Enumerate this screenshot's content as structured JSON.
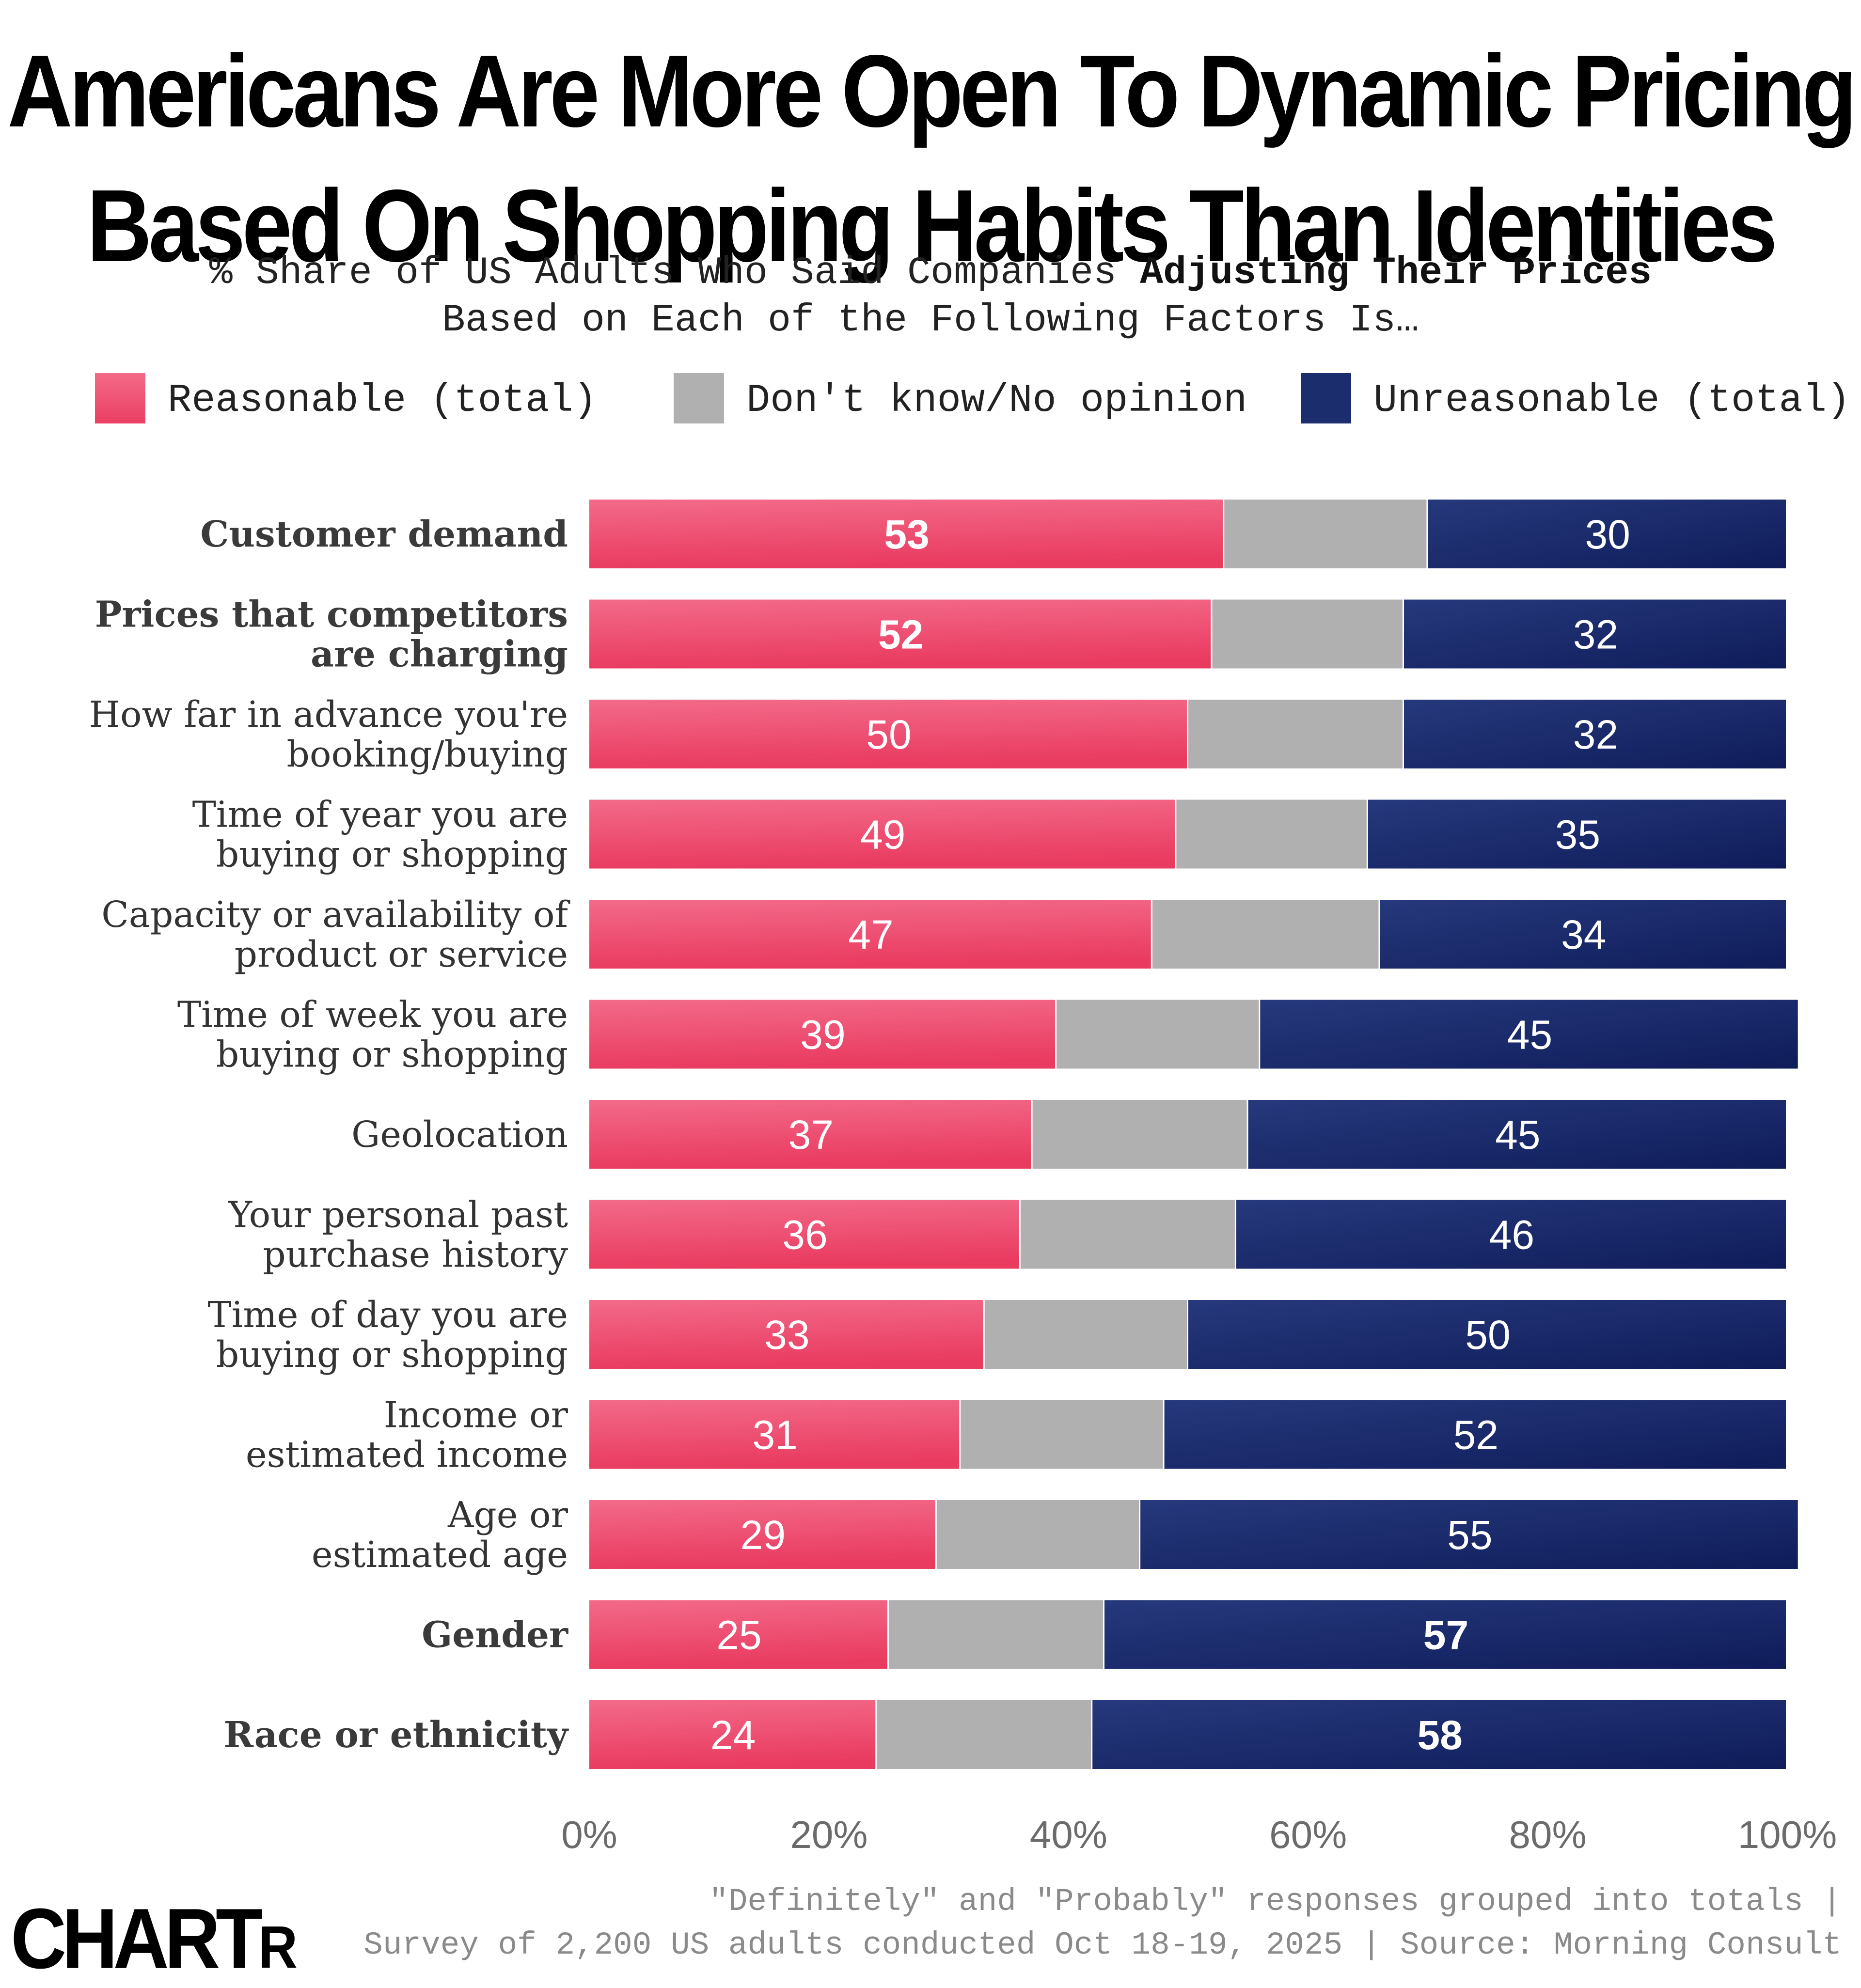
{
  "title_lines": [
    "Americans Are More Open To Dynamic Pricing",
    "Based On Shopping Habits Than Identities"
  ],
  "subtitle": {
    "line1_part1": "% Share of US Adults Who Said Companies ",
    "line1_bold": "Adjusting Their Prices",
    "line2": "Based on Each of the Following Factors Is…"
  },
  "legend": [
    {
      "label": "Reasonable (total)",
      "color": "#ee4a6b"
    },
    {
      "label": "Don't know/No opinion",
      "color": "#b0b0b0"
    },
    {
      "label": "Unreasonable (total)",
      "color": "#1c2d6e"
    }
  ],
  "chart_data": {
    "type": "bar",
    "orientation": "horizontal",
    "stacked": true,
    "categories": [
      "Customer demand",
      "Prices that competitors are charging",
      "How far in advance you're booking/buying",
      "Time of year you are buying or shopping",
      "Capacity or availability of product or service",
      "Time of week you are buying or shopping",
      "Geolocation",
      "Your personal past purchase history",
      "Time of day you are buying or shopping",
      "Income or estimated income",
      "Age or estimated age",
      "Gender",
      "Race or ethnicity"
    ],
    "category_label_lines": [
      [
        "Customer demand"
      ],
      [
        "Prices that competitors",
        "are charging"
      ],
      [
        "How far in advance you're",
        "booking/buying"
      ],
      [
        "Time of year you are",
        "buying or shopping"
      ],
      [
        "Capacity or availability of",
        "product or service"
      ],
      [
        "Time of week you are",
        "buying or shopping"
      ],
      [
        "Geolocation"
      ],
      [
        "Your personal past",
        "purchase history"
      ],
      [
        "Time of day you are",
        "buying or shopping"
      ],
      [
        "Income or",
        "estimated income"
      ],
      [
        "Age or",
        "estimated age"
      ],
      [
        "Gender"
      ],
      [
        "Race or ethnicity"
      ]
    ],
    "bold_categories": [
      0,
      1,
      11,
      12
    ],
    "bold_reasonable_labels": [
      0,
      1
    ],
    "bold_unreasonable_labels": [
      11,
      12
    ],
    "series": [
      {
        "name": "Reasonable (total)",
        "color": "#ee4a6b",
        "values": [
          53,
          52,
          50,
          49,
          47,
          39,
          37,
          36,
          33,
          31,
          29,
          25,
          24
        ],
        "labeled": true
      },
      {
        "name": "Don't know/No opinion",
        "color": "#b0b0b0",
        "values": [
          17,
          16,
          18,
          16,
          19,
          17,
          18,
          18,
          17,
          17,
          17,
          18,
          18
        ],
        "labeled": false
      },
      {
        "name": "Unreasonable (total)",
        "color": "#1c2d6e",
        "values": [
          30,
          32,
          32,
          35,
          34,
          45,
          45,
          46,
          50,
          52,
          55,
          57,
          58
        ],
        "labeled": true
      }
    ],
    "xlim": [
      0,
      100
    ],
    "x_ticks": [
      "0%",
      "20%",
      "40%",
      "60%",
      "80%",
      "100%"
    ],
    "x_tick_values": [
      0,
      20,
      40,
      60,
      80,
      100
    ],
    "grid": false,
    "legend_position": "top"
  },
  "footer": {
    "note_line1": "\"Definitely\" and \"Probably\" responses grouped into totals |",
    "note_line2": "Survey of 2,200 US adults conducted Oct 18-19, 2025 | Source: Morning Consult",
    "logo_big": "CHART",
    "logo_small": "R"
  }
}
